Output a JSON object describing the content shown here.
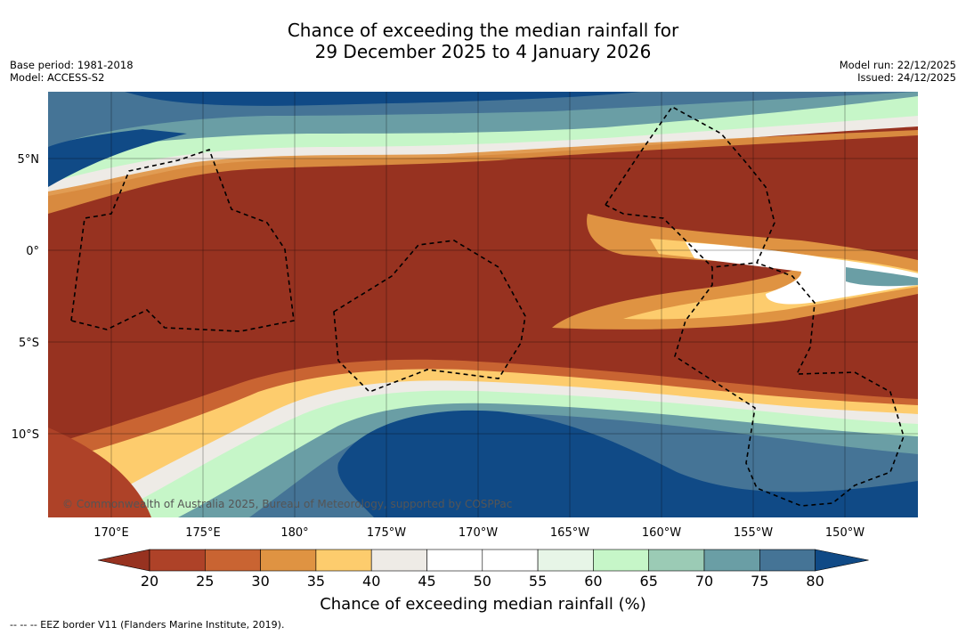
{
  "title": {
    "line1": "Chance of exceeding the median rainfall for",
    "line2": "29 December 2025 to 4 January 2026"
  },
  "meta_left": {
    "base_period": "Base period: 1981-2018",
    "model": "Model: ACCESS-S2"
  },
  "meta_right": {
    "model_run": "Model run: 22/12/2025",
    "issued": "Issued: 24/12/2025"
  },
  "map": {
    "lat_labels": [
      "5°N",
      "0°",
      "5°S",
      "10°S"
    ],
    "lon_labels": [
      "170°E",
      "175°E",
      "180°",
      "175°W",
      "170°W",
      "165°W",
      "160°W",
      "155°W",
      "150°W"
    ],
    "watermark": "© Commonwealth of Australia 2025, Bureau of Meteorology, supported by COSPPac"
  },
  "colorbar": {
    "ticks": [
      "20",
      "25",
      "30",
      "35",
      "40",
      "45",
      "50",
      "55",
      "60",
      "65",
      "70",
      "75",
      "80"
    ],
    "colors": [
      "#973220",
      "#ae4228",
      "#c96432",
      "#df9342",
      "#fdcc6d",
      "#eeebe6",
      "#ffffff",
      "#ffffff",
      "#e7f5e7",
      "#c6f6c8",
      "#9bcbb5",
      "#6a9ea5",
      "#457496",
      "#104a86"
    ],
    "label": "Chance of exceeding median rainfall (%)"
  },
  "footnote": "--  --  -- EEZ border V11 (Flanders Marine Institute, 2019)."
}
